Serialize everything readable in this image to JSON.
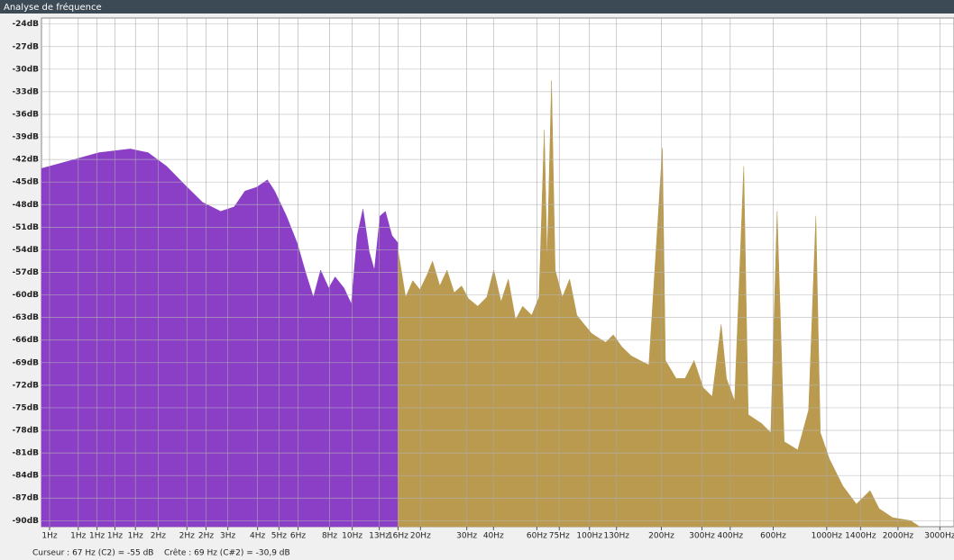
{
  "chart_data": {
    "type": "area",
    "title": "Analyse de fréquence",
    "annotations": [
      "Curseur : 67 Hz (C2) = -55 dB",
      "Crête : 69 Hz (C#2) = -30,9 dB"
    ],
    "log_x": true,
    "grid": true,
    "xlim": [
      0.49,
      3440
    ],
    "ylim": [
      -90.8,
      -23.2
    ],
    "yticks": [
      {
        "value": -24,
        "label": "-24dB"
      },
      {
        "value": -27,
        "label": "-27dB"
      },
      {
        "value": -30,
        "label": "-30dB"
      },
      {
        "value": -33,
        "label": "-33dB"
      },
      {
        "value": -36,
        "label": "-36dB"
      },
      {
        "value": -39,
        "label": "-39dB"
      },
      {
        "value": -42,
        "label": "-42dB"
      },
      {
        "value": -45,
        "label": "-45dB"
      },
      {
        "value": -48,
        "label": "-48dB"
      },
      {
        "value": -51,
        "label": "-51dB"
      },
      {
        "value": -54,
        "label": "-54dB"
      },
      {
        "value": -57,
        "label": "-57dB"
      },
      {
        "value": -60,
        "label": "-60dB"
      },
      {
        "value": -63,
        "label": "-63dB"
      },
      {
        "value": -66,
        "label": "-66dB"
      },
      {
        "value": -69,
        "label": "-69dB"
      },
      {
        "value": -72,
        "label": "-72dB"
      },
      {
        "value": -75,
        "label": "-75dB"
      },
      {
        "value": -78,
        "label": "-78dB"
      },
      {
        "value": -81,
        "label": "-81dB"
      },
      {
        "value": -84,
        "label": "-84dB"
      },
      {
        "value": -87,
        "label": "-87dB"
      },
      {
        "value": -90,
        "label": "-90dB"
      }
    ],
    "xticks": [
      {
        "value": 0.53,
        "label": "1Hz"
      },
      {
        "value": 0.7,
        "label": "1Hz"
      },
      {
        "value": 0.84,
        "label": "1Hz"
      },
      {
        "value": 1,
        "label": "1Hz"
      },
      {
        "value": 1.22,
        "label": "1Hz"
      },
      {
        "value": 1.52,
        "label": "2Hz"
      },
      {
        "value": 2.01,
        "label": "2Hz"
      },
      {
        "value": 2.42,
        "label": "2Hz"
      },
      {
        "value": 2.99,
        "label": "3Hz"
      },
      {
        "value": 3.99,
        "label": "4Hz"
      },
      {
        "value": 4.91,
        "label": "5Hz"
      },
      {
        "value": 5.91,
        "label": "6Hz"
      },
      {
        "value": 8.03,
        "label": "8Hz"
      },
      {
        "value": 10,
        "label": "10Hz"
      },
      {
        "value": 13,
        "label": "13Hz"
      },
      {
        "value": 15.6,
        "label": "16Hz"
      },
      {
        "value": 19.4,
        "label": "20Hz"
      },
      {
        "value": 30.4,
        "label": "30Hz"
      },
      {
        "value": 39.4,
        "label": "40Hz"
      },
      {
        "value": 60,
        "label": "60Hz"
      },
      {
        "value": 74.6,
        "label": "75Hz"
      },
      {
        "value": 100,
        "label": "100Hz"
      },
      {
        "value": 130,
        "label": "130Hz"
      },
      {
        "value": 201,
        "label": "200Hz"
      },
      {
        "value": 298,
        "label": "300Hz"
      },
      {
        "value": 392,
        "label": "400Hz"
      },
      {
        "value": 595,
        "label": "600Hz"
      },
      {
        "value": 1000,
        "label": "1000Hz"
      },
      {
        "value": 1389,
        "label": "1400Hz"
      },
      {
        "value": 1998,
        "label": "2000Hz"
      },
      {
        "value": 2999,
        "label": "3000Hz"
      }
    ],
    "series": [
      {
        "color": "#8b3fc6",
        "x": [
          0.49,
          0.657,
          0.854,
          1.16,
          1.38,
          1.65,
          1.96,
          2.34,
          2.79,
          3.18,
          3.53,
          3.95,
          4.39,
          4.71,
          5.28,
          5.86,
          6.4,
          6.86,
          7.36,
          7.96,
          8.47,
          9.24,
          9.91,
          10.5,
          11.1,
          11.8,
          12.4,
          13.1,
          13.8,
          14.7,
          15.6
        ],
        "values": [
          -43.2,
          -42.1,
          -41.1,
          -40.6,
          -41.1,
          -42.9,
          -45.3,
          -47.7,
          -48.9,
          -48.3,
          -46.2,
          -45.7,
          -44.7,
          -46.2,
          -49.5,
          -53.1,
          -57.3,
          -60.3,
          -56.7,
          -59.1,
          -57.6,
          -59.1,
          -61.2,
          -52.1,
          -48.6,
          -54.3,
          -56.7,
          -49.5,
          -48.9,
          -52.1,
          -53.1
        ]
      },
      {
        "color": "#b99a4f",
        "x": [
          15.6,
          16.8,
          18,
          19.3,
          20.7,
          21.8,
          23.4,
          25.1,
          26.9,
          28.9,
          30.9,
          33.8,
          36.9,
          39.5,
          42.4,
          45.5,
          48.8,
          52.3,
          57.1,
          61.3,
          64.5,
          66.3,
          69.2,
          71.7,
          76.9,
          82.5,
          88.5,
          94.9,
          102,
          109,
          117,
          126,
          137,
          150,
          163,
          178,
          203,
          209,
          232,
          253,
          276,
          301,
          329,
          359,
          378,
          409,
          447,
          467,
          532,
          581,
          618,
          662,
          755,
          839,
          900,
          940,
          1026,
          1170,
          1334,
          1523,
          1663,
          1897,
          2259,
          2466
        ],
        "values": [
          -54.1,
          -60.3,
          -58.1,
          -59.3,
          -57.3,
          -55.5,
          -58.8,
          -56.7,
          -59.7,
          -58.8,
          -60.5,
          -61.5,
          -60.3,
          -56.7,
          -60.9,
          -57.9,
          -63.3,
          -61.5,
          -62.7,
          -60.3,
          -38.1,
          -55.5,
          -31.5,
          -56.7,
          -60.3,
          -57.9,
          -62.7,
          -63.9,
          -65.1,
          -65.7,
          -66.3,
          -65.3,
          -66.9,
          -68.1,
          -68.7,
          -69.3,
          -40.5,
          -68.7,
          -71.1,
          -71.1,
          -68.7,
          -72.3,
          -73.5,
          -63.9,
          -71.1,
          -74.1,
          -42.9,
          -75.9,
          -77.1,
          -78.3,
          -48.9,
          -79.5,
          -80.6,
          -75.3,
          -49.5,
          -78.3,
          -81.8,
          -85.4,
          -87.8,
          -86.0,
          -88.4,
          -89.6,
          -90.0,
          -90.8
        ]
      }
    ]
  }
}
